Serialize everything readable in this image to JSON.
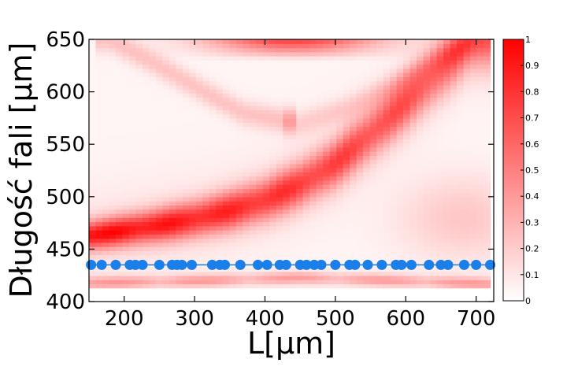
{
  "chart_data": {
    "type": "heatmap",
    "title": "",
    "xlabel": "L[μm]",
    "ylabel": "Długość fali [μm]",
    "xlim": [
      150,
      725
    ],
    "ylim": [
      400,
      650
    ],
    "x_ticks": [
      200,
      300,
      400,
      500,
      600,
      700
    ],
    "x_tick_labels": [
      "200",
      "300",
      "400",
      "500",
      "600",
      "700"
    ],
    "y_ticks": [
      400,
      450,
      500,
      550,
      600,
      650
    ],
    "y_tick_labels": [
      "400",
      "450",
      "500",
      "550",
      "600",
      "650"
    ],
    "heatmap_x_range": [
      150,
      720
    ],
    "heatmap_y_range": [
      413,
      650
    ],
    "colorbar": {
      "range": [
        0,
        1
      ],
      "ticks": [
        0,
        0.1,
        0.2,
        0.3,
        0.4,
        0.5,
        0.6,
        0.7,
        0.8,
        0.9,
        1
      ],
      "tick_labels": [
        "0",
        "0.1",
        "0.2",
        "0.3",
        "0.4",
        "0.5",
        "0.6",
        "0.7",
        "0.8",
        "0.9",
        "1"
      ],
      "colors": [
        "#ffffff",
        "#ff0000"
      ]
    },
    "features": [
      {
        "kind": "band",
        "description": "main resonance band",
        "points": [
          [
            150,
            463
          ],
          [
            200,
            468
          ],
          [
            250,
            473
          ],
          [
            300,
            479
          ],
          [
            350,
            487
          ],
          [
            400,
            497
          ],
          [
            450,
            512
          ],
          [
            500,
            532
          ],
          [
            550,
            560
          ],
          [
            600,
            590
          ],
          [
            650,
            622
          ],
          [
            690,
            648
          ]
        ],
        "peak_intensity": 0.85
      },
      {
        "kind": "band",
        "description": "upper arc left",
        "points": [
          [
            180,
            650
          ],
          [
            250,
            625
          ],
          [
            320,
            598
          ],
          [
            370,
            580
          ],
          [
            420,
            574
          ]
        ],
        "peak_intensity": 0.2
      },
      {
        "kind": "band",
        "description": "upper arc right",
        "points": [
          [
            450,
            570
          ],
          [
            520,
            585
          ],
          [
            580,
            605
          ],
          [
            640,
            630
          ],
          [
            700,
            650
          ]
        ],
        "peak_intensity": 0.15
      },
      {
        "kind": "band",
        "description": "bottom edge band",
        "points": [
          [
            150,
            418
          ],
          [
            300,
            420
          ],
          [
            450,
            423
          ],
          [
            600,
            420
          ],
          [
            720,
            417
          ]
        ],
        "peak_intensity": 0.35
      },
      {
        "kind": "blob",
        "description": "top edge",
        "center": [
          440,
          640
        ],
        "peak_intensity": 0.75
      }
    ],
    "series": [
      {
        "type": "scatter",
        "color": "#1a7fe8",
        "y": 435,
        "x": [
          153,
          168,
          188,
          208,
          216,
          226,
          250,
          268,
          275,
          282,
          296,
          325,
          336,
          343,
          365,
          390,
          403,
          421,
          430,
          450,
          459,
          470,
          480,
          500,
          520,
          528,
          546,
          566,
          586,
          594,
          608,
          633,
          650,
          660,
          683,
          700,
          720
        ]
      }
    ]
  }
}
